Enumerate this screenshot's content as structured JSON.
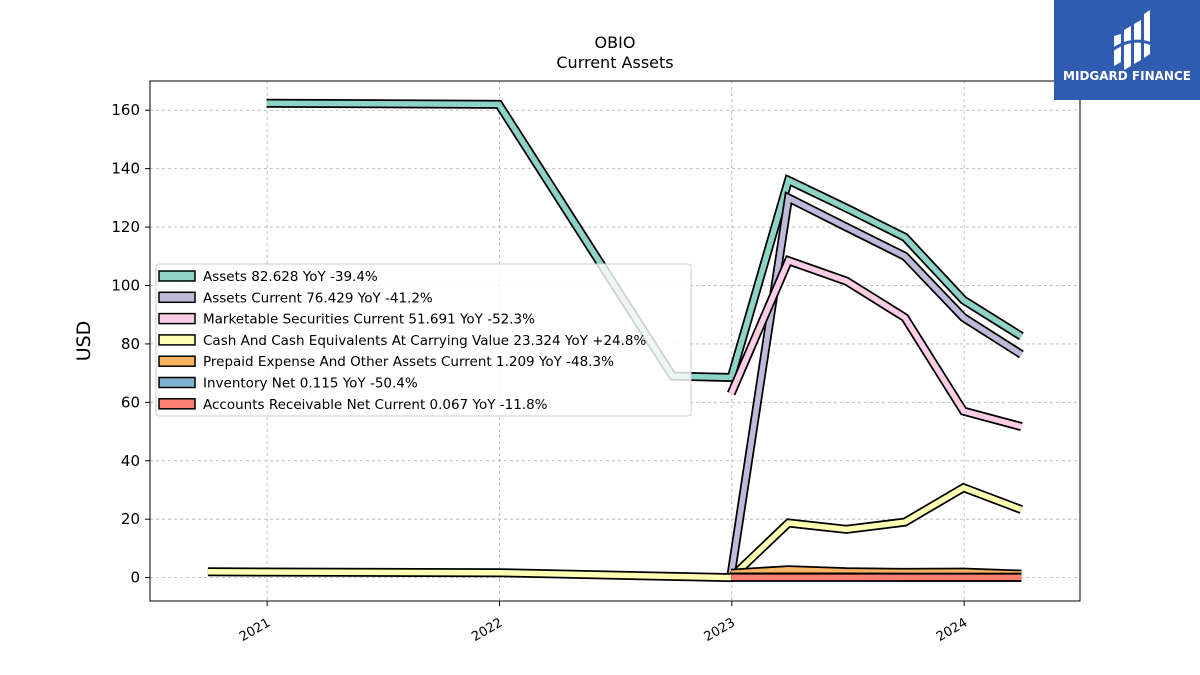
{
  "chart_data": {
    "type": "line",
    "title": "OBIO",
    "subtitle": "Current  Assets",
    "ylabel": "USD",
    "xlabel": "",
    "ylim": [
      -8,
      170
    ],
    "xlim": [
      "2020-07-01",
      "2024-07-01"
    ],
    "y_ticks": [
      0,
      20,
      40,
      60,
      80,
      100,
      120,
      140,
      160
    ],
    "x_ticks": [
      {
        "date": "2021-01-01",
        "label": "2021"
      },
      {
        "date": "2022-01-01",
        "label": "2022"
      },
      {
        "date": "2023-01-01",
        "label": "2023"
      },
      {
        "date": "2024-01-01",
        "label": "2024"
      }
    ],
    "grid": true,
    "legend_position": "center-left",
    "series": [
      {
        "name": "Assets",
        "legend": "Assets  82.628 YoY -39.4%",
        "color": "#8dd3c7",
        "points": [
          [
            "2020-12-31",
            162.4
          ],
          [
            "2021-12-31",
            162.0
          ],
          [
            "2022-09-30",
            69.0
          ],
          [
            "2022-12-31",
            68.5
          ],
          [
            "2023-03-31",
            136.0
          ],
          [
            "2023-06-30",
            126.5
          ],
          [
            "2023-09-30",
            116.5
          ],
          [
            "2023-12-31",
            95.0
          ],
          [
            "2024-03-31",
            82.6
          ]
        ]
      },
      {
        "name": "Assets Current",
        "legend": "Assets Current  76.429 YoY -41.2%",
        "color": "#bebada",
        "points": [
          [
            "2022-12-31",
            1.2
          ],
          [
            "2023-03-31",
            130.0
          ],
          [
            "2023-06-30",
            120.0
          ],
          [
            "2023-09-30",
            110.0
          ],
          [
            "2023-12-31",
            89.0
          ],
          [
            "2024-03-31",
            76.4
          ]
        ]
      },
      {
        "name": "Marketable Securities Current",
        "legend": "Marketable Securities Current  51.691 YoY -52.3%",
        "color": "#fccde5",
        "points": [
          [
            "2022-12-31",
            63.0
          ],
          [
            "2023-03-31",
            108.5
          ],
          [
            "2023-06-30",
            101.5
          ],
          [
            "2023-09-30",
            89.0
          ],
          [
            "2023-12-31",
            57.0
          ],
          [
            "2024-03-31",
            51.7
          ]
        ]
      },
      {
        "name": "Cash And Cash Equivalents At Carrying Value",
        "legend": "Cash And Cash Equivalents At Carrying Value  23.324 YoY +24.8%",
        "color": "#ffffb3",
        "points": [
          [
            "2020-09-30",
            2.0
          ],
          [
            "2021-12-31",
            1.7
          ],
          [
            "2022-12-31",
            0.0
          ],
          [
            "2023-03-31",
            18.7
          ],
          [
            "2023-06-30",
            16.5
          ],
          [
            "2023-09-30",
            19.0
          ],
          [
            "2023-12-31",
            30.8
          ],
          [
            "2024-03-31",
            23.3
          ]
        ]
      },
      {
        "name": "Prepaid Expense And Other Assets Current",
        "legend": "Prepaid Expense And Other Assets Current  1.209 YoY -48.3%",
        "color": "#fdb462",
        "points": [
          [
            "2022-12-31",
            1.5
          ],
          [
            "2023-03-31",
            2.7
          ],
          [
            "2023-06-30",
            2.0
          ],
          [
            "2023-09-30",
            1.8
          ],
          [
            "2023-12-31",
            1.9
          ],
          [
            "2024-03-31",
            1.2
          ]
        ]
      },
      {
        "name": "Inventory Net",
        "legend": "Inventory Net  0.115 YoY -50.4%",
        "color": "#80b1d3",
        "points": [
          [
            "2022-12-31",
            0.2
          ],
          [
            "2023-03-31",
            0.23
          ],
          [
            "2023-06-30",
            0.2
          ],
          [
            "2023-09-30",
            0.15
          ],
          [
            "2023-12-31",
            0.13
          ],
          [
            "2024-03-31",
            0.115
          ]
        ]
      },
      {
        "name": "Accounts Receivable Net Current",
        "legend": "Accounts Receivable Net Current  0.067 YoY -11.8%",
        "color": "#fb8072",
        "points": [
          [
            "2022-12-31",
            0.076
          ],
          [
            "2023-03-31",
            0.07
          ],
          [
            "2023-06-30",
            0.07
          ],
          [
            "2023-09-30",
            0.07
          ],
          [
            "2023-12-31",
            0.07
          ],
          [
            "2024-03-31",
            0.067
          ]
        ]
      }
    ]
  },
  "logo": {
    "text": "MIDGARD FINANCE",
    "background": "#2f5bb0",
    "icon": "midgard-logo-icon"
  }
}
